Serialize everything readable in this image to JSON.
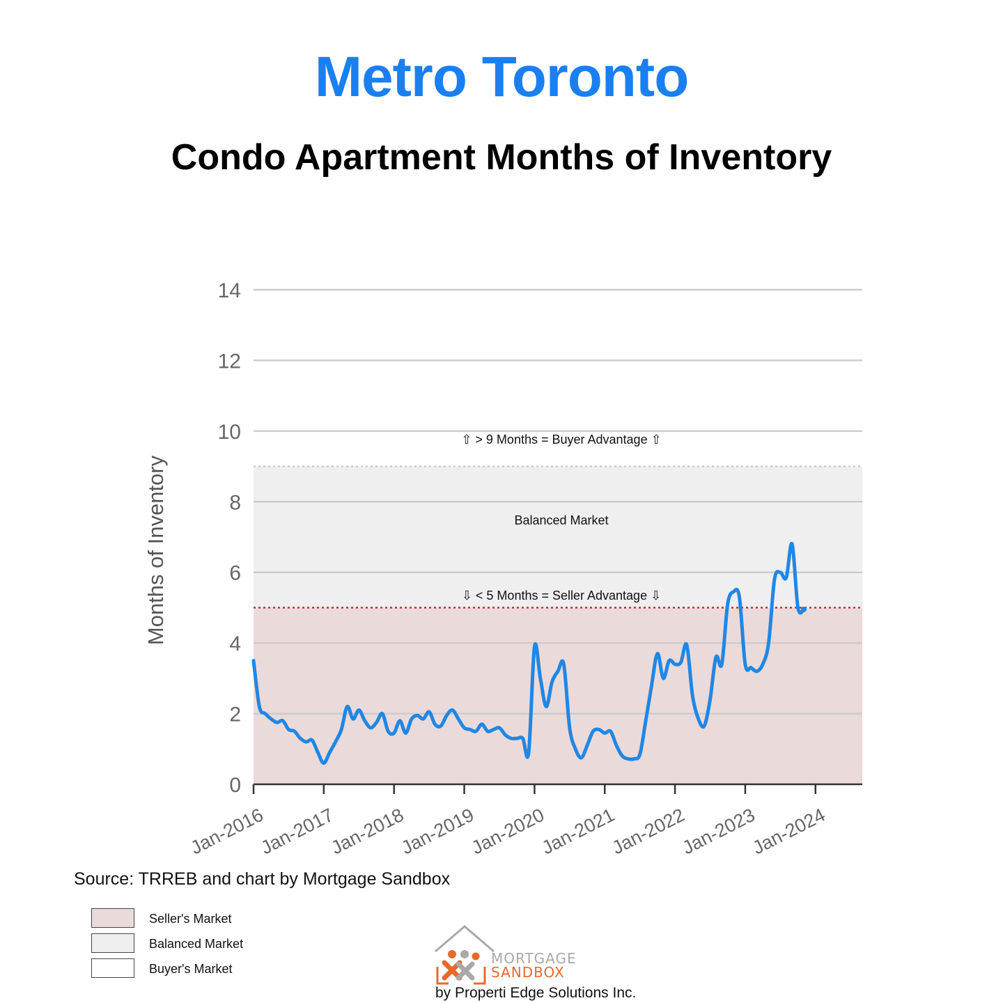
{
  "header": {
    "title": "Metro Toronto",
    "subtitle": "Condo Apartment Months of Inventory"
  },
  "colors": {
    "title": "#1a7ff0",
    "line": "#1f87e6",
    "seller_zone": "#ebdada",
    "balanced_zone": "#efefef",
    "buyer_zone": "#ffffff",
    "seller_threshold": "#cc2a2a",
    "balanced_threshold": "#cccccc",
    "gridline": "#cccccc",
    "axis_text": "#666666",
    "logo_orange": "#e8692a",
    "logo_gray": "#a9a9a9"
  },
  "source": "Source: TRREB and chart by Mortgage Sandbox",
  "legend": [
    {
      "label": "Seller's Market",
      "color": "#ebdada"
    },
    {
      "label": "Balanced Market",
      "color": "#efefef"
    },
    {
      "label": "Buyer's Market",
      "color": "#ffffff"
    }
  ],
  "logo": {
    "line1": "MORTGAGE",
    "line2": "SANDBOX",
    "tagline": "by Properti Edge Solutions Inc.",
    "icon": "house-people-logo-icon"
  },
  "chart_data": {
    "type": "line",
    "ylabel": "Months of Inventory",
    "xlabel": "",
    "ylim": [
      0,
      14
    ],
    "yticks": [
      0,
      2,
      4,
      6,
      8,
      10,
      12,
      14
    ],
    "grid": true,
    "xtick_labels": [
      "Jan-2016",
      "Jan-2017",
      "Jan-2018",
      "Jan-2019",
      "Jan-2020",
      "Jan-2021",
      "Jan-2022",
      "Jan-2023",
      "Jan-2024"
    ],
    "x_start": "2016-01",
    "x_end": "2024-09",
    "zones": {
      "seller_below": 5,
      "buyer_above": 9
    },
    "annotations": {
      "buyer": "⇧ > 9 Months = Buyer Advantage ⇧",
      "balanced": "Balanced Market",
      "seller": "⇩ < 5 Months = Seller Advantage ⇩"
    },
    "series": [
      {
        "values": [
          3.5,
          2.2,
          2.0,
          1.85,
          1.75,
          1.8,
          1.55,
          1.5,
          1.3,
          1.2,
          1.25,
          0.9,
          0.6,
          0.9,
          1.2,
          1.55,
          2.2,
          1.85,
          2.1,
          1.8,
          1.6,
          1.75,
          2.0,
          1.5,
          1.45,
          1.8,
          1.45,
          1.85,
          1.95,
          1.85,
          2.05,
          1.7,
          1.65,
          1.95,
          2.1,
          1.85,
          1.6,
          1.55,
          1.5,
          1.7,
          1.5,
          1.55,
          1.6,
          1.4,
          1.3,
          1.3,
          1.3,
          0.9,
          3.9,
          3.0,
          2.2,
          2.9,
          3.2,
          3.4,
          1.6,
          1.0,
          0.75,
          1.1,
          1.5,
          1.55,
          1.45,
          1.5,
          1.1,
          0.8,
          0.72,
          0.72,
          0.85,
          1.8,
          2.8,
          3.7,
          3.0,
          3.5,
          3.4,
          3.45,
          3.95,
          2.5,
          1.85,
          1.65,
          2.4,
          3.6,
          3.4,
          5.1,
          5.45,
          5.3,
          3.4,
          3.3,
          3.2,
          3.4,
          4.0,
          5.8,
          6.0,
          5.85,
          6.8,
          5.0,
          4.95
        ]
      }
    ]
  }
}
